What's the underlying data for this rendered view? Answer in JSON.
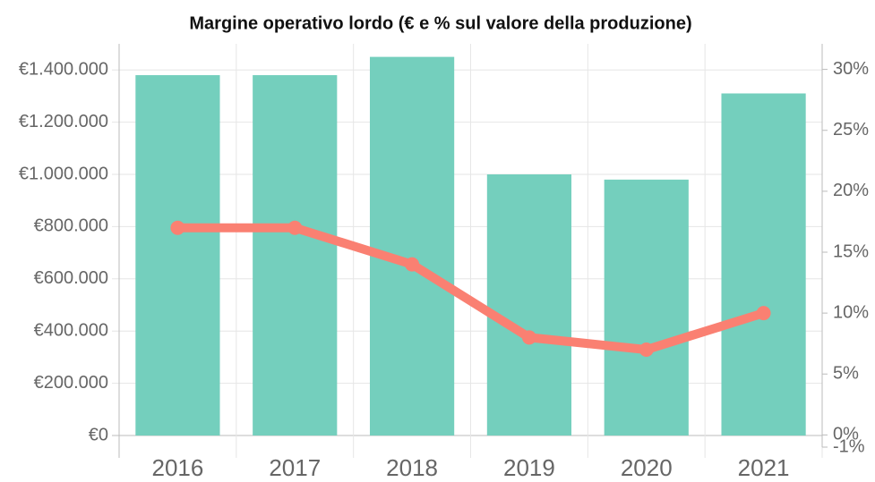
{
  "chart_data": {
    "type": "bar-line",
    "title": "Margine operativo lordo (€ e % sul valore della produzione)",
    "categories": [
      "2016",
      "2017",
      "2018",
      "2019",
      "2020",
      "2021"
    ],
    "series": [
      {
        "type": "bar",
        "color": "#74cfbd",
        "values": [
          1380000,
          1380000,
          1450000,
          1000000,
          980000,
          1310000
        ]
      },
      {
        "type": "line",
        "axis": "y2",
        "color": "#fa8072",
        "values": [
          17,
          17,
          14,
          8,
          7,
          10
        ]
      }
    ],
    "ylim": [
      -44500,
      1500000
    ],
    "yticks": [
      {
        "value": 0,
        "label": "€0"
      },
      {
        "value": 200000,
        "label": "€200.000"
      },
      {
        "value": 400000,
        "label": "€400.000"
      },
      {
        "value": 600000,
        "label": "€600.000"
      },
      {
        "value": 800000,
        "label": "€800.000"
      },
      {
        "value": 1000000,
        "label": "€1.000.000"
      },
      {
        "value": 1200000,
        "label": "€1.200.000"
      },
      {
        "value": 1400000,
        "label": "€1.400.000"
      }
    ],
    "y2lim": [
      -1,
      32.1
    ],
    "y2ticks": [
      {
        "value": -1,
        "label": "-1%"
      },
      {
        "value": 0,
        "label": "0%"
      },
      {
        "value": 5,
        "label": "5%"
      },
      {
        "value": 10,
        "label": "10%"
      },
      {
        "value": 15,
        "label": "15%"
      },
      {
        "value": 20,
        "label": "20%"
      },
      {
        "value": 25,
        "label": "25%"
      },
      {
        "value": 30,
        "label": "30%"
      }
    ],
    "grid": true
  }
}
